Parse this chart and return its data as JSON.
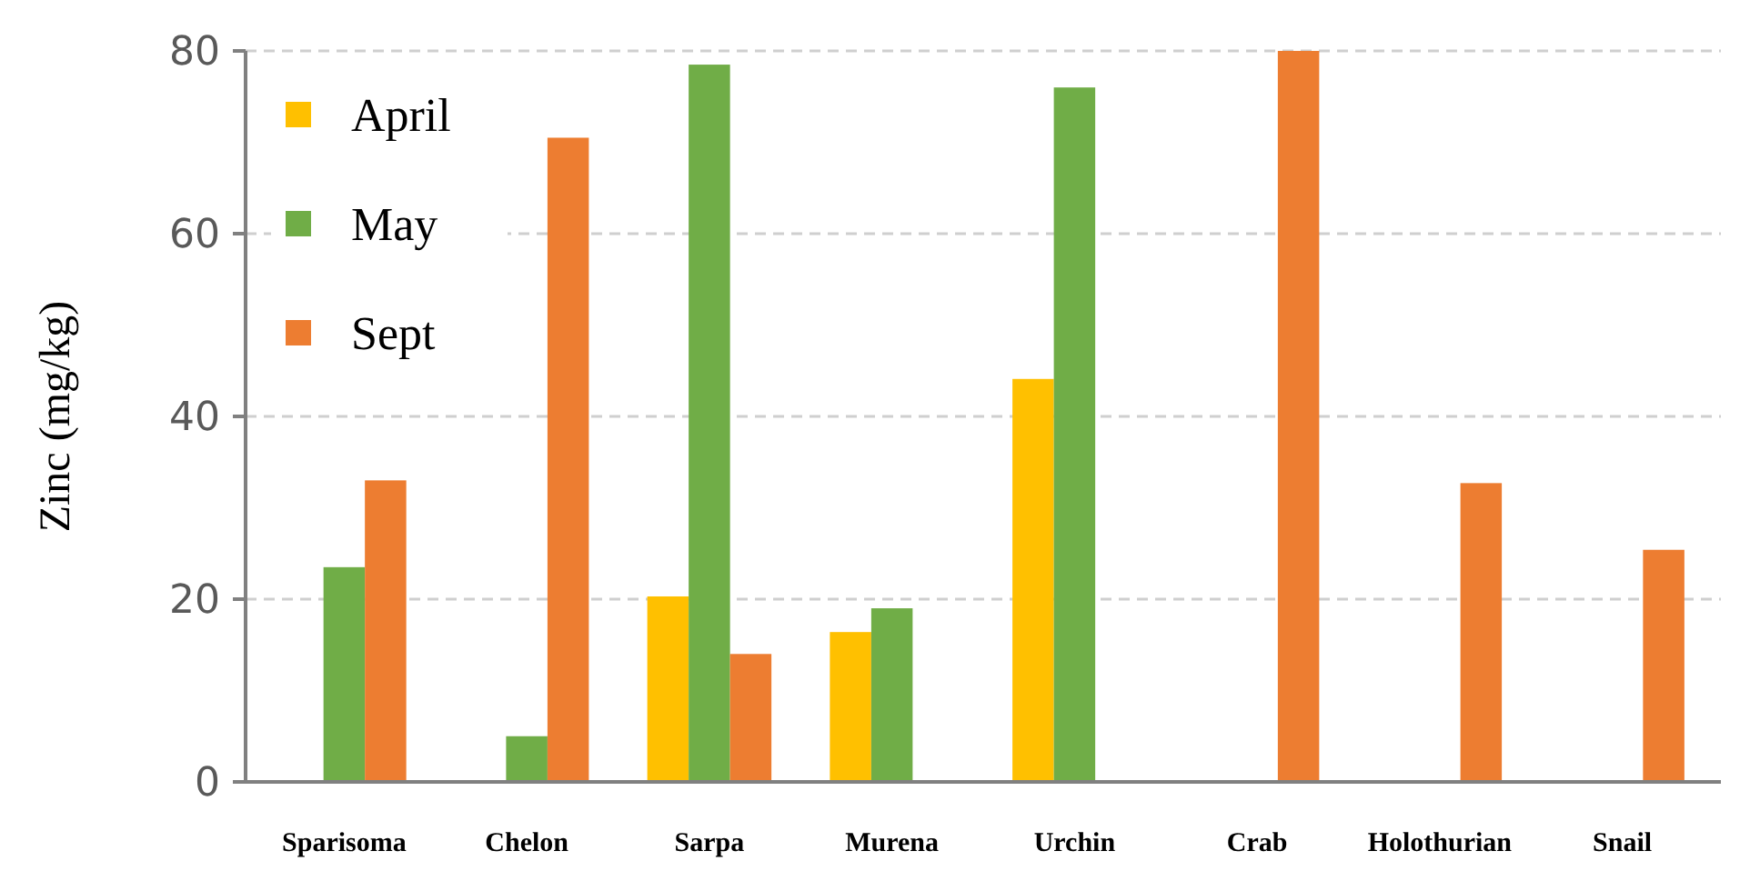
{
  "chart_data": {
    "type": "bar",
    "ylabel": "Zinc (mg/kg)",
    "categories": [
      "Sparisoma",
      "Chelon",
      "Sarpa",
      "Murena",
      "Urchin",
      "Crab",
      "Holothurian",
      "Snail"
    ],
    "series": [
      {
        "name": "April",
        "color": "#ffc000",
        "values": [
          null,
          null,
          20.3,
          16.4,
          44.1,
          null,
          null,
          null
        ]
      },
      {
        "name": "May",
        "color": "#70ad47",
        "values": [
          23.5,
          5,
          78.5,
          19,
          76,
          null,
          null,
          null
        ]
      },
      {
        "name": "Sept",
        "color": "#ed7d31",
        "values": [
          33,
          70.5,
          14,
          null,
          null,
          80,
          32.7,
          25.4
        ]
      }
    ],
    "ylim": [
      0,
      80
    ],
    "yticks": [
      0,
      20,
      40,
      60,
      80
    ],
    "grid": "y",
    "legend": "top left"
  }
}
